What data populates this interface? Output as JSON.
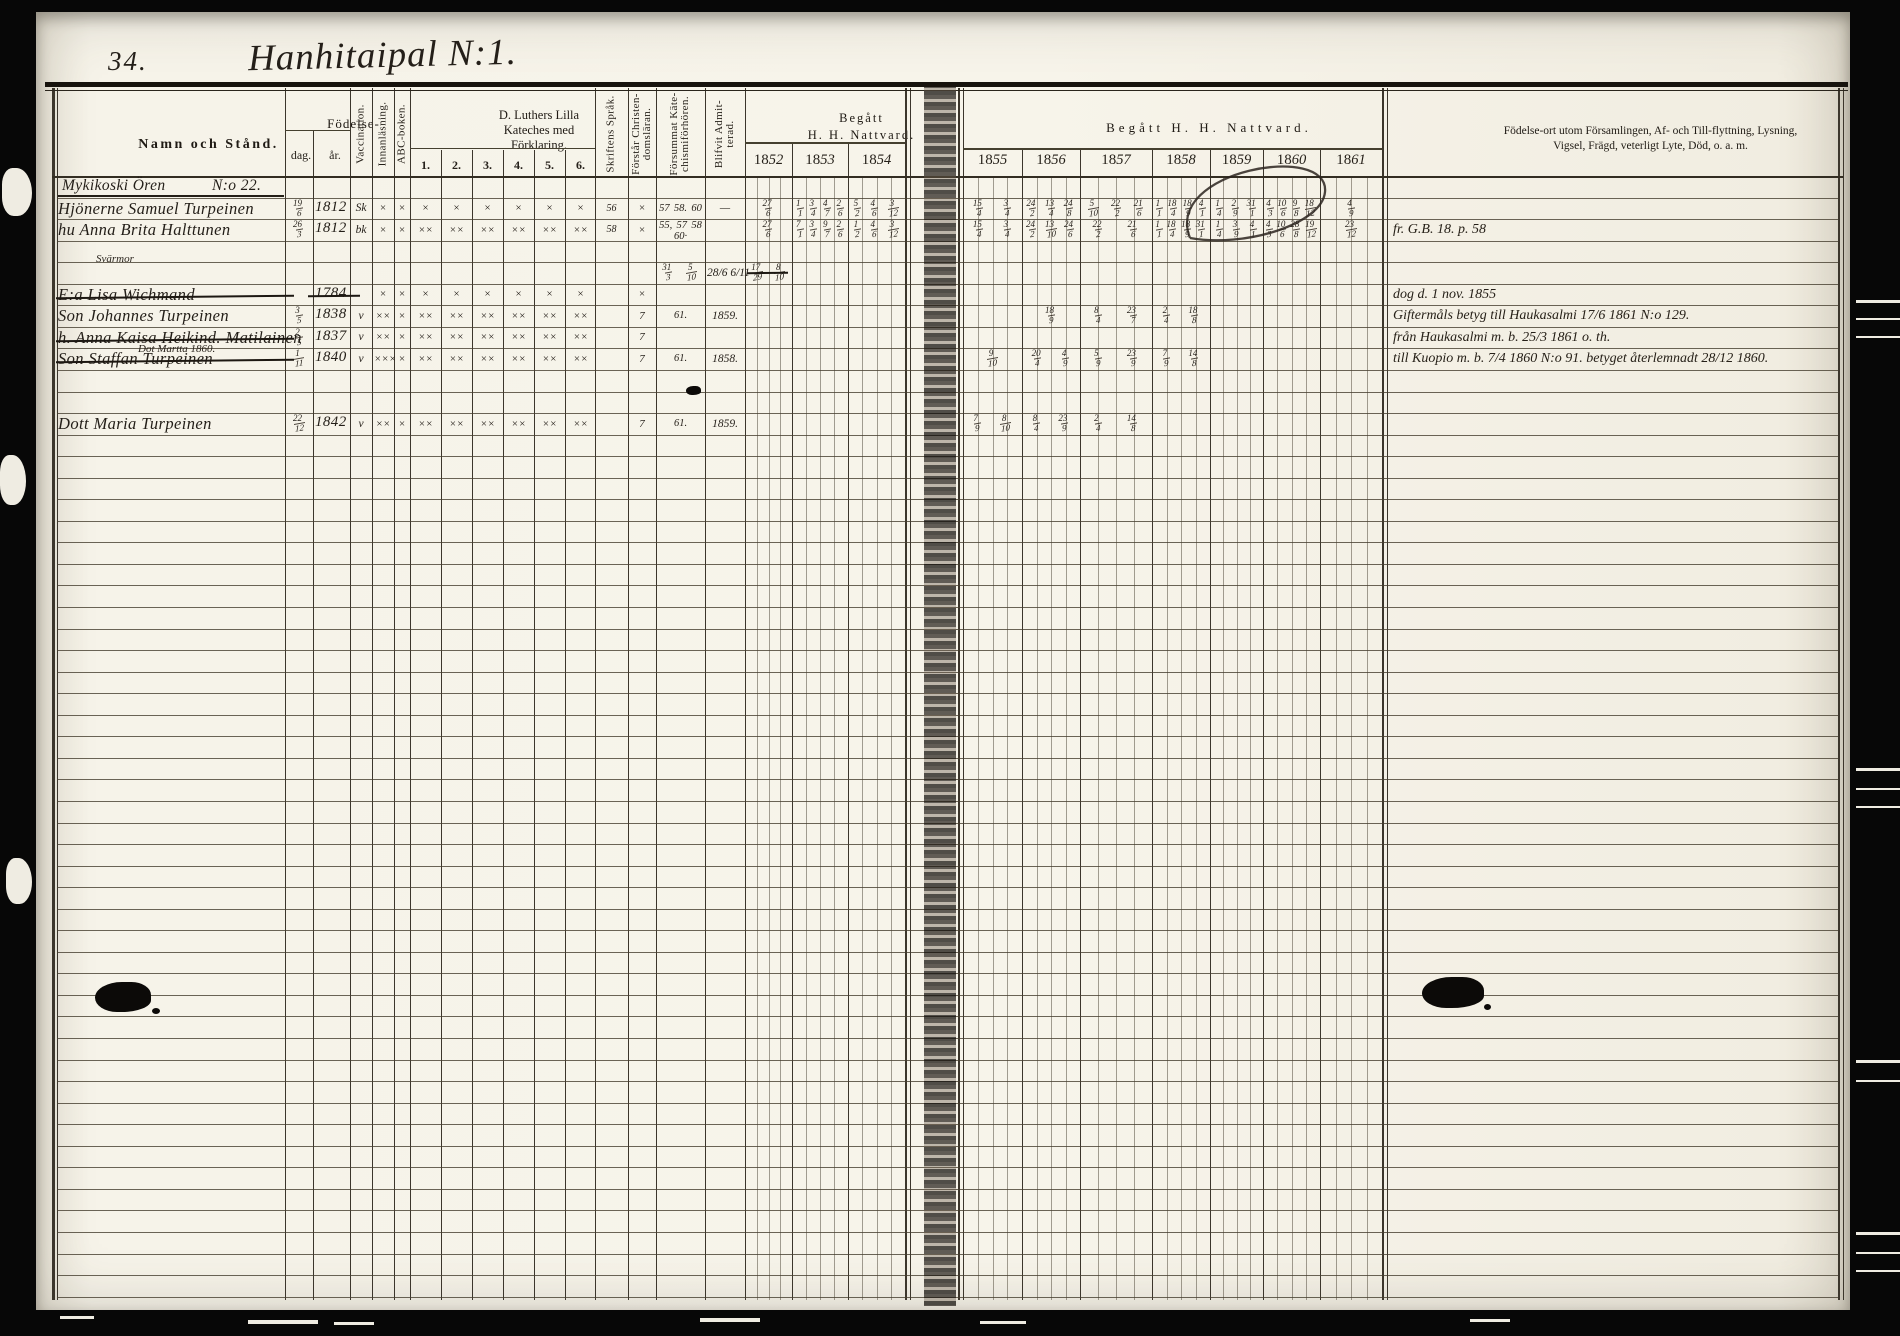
{
  "scan": {
    "folio": "34.",
    "title": "Hanhitaipal N:1."
  },
  "columns": {
    "namn": "Namn och Stånd.",
    "fodelse": "Födelse-",
    "dag": "dag.",
    "ar": "år.",
    "vaccination": "Vaccination.",
    "innanlasning": "Innanläsning.",
    "abc": "ABC-boken.",
    "kateches": [
      "D. Luthers Lilla",
      "Kateches med",
      "Förklaring."
    ],
    "kateches_sub": [
      "1.",
      "2.",
      "3.",
      "4.",
      "5.",
      "6."
    ],
    "sprak": "Skriftens Språk.",
    "forstar": [
      "Förstår Christen-",
      "domsläran."
    ],
    "forsummat": [
      "Försummat Käte-",
      "chismiförhören."
    ],
    "admitterad": [
      "Blifvit Admit-",
      "terad."
    ],
    "begatt_left": [
      "Begått",
      "H. H. Nattvard."
    ],
    "begatt_right": "Begått  H.  H.  Nattvard.",
    "notes": [
      "Födelse-ort utom Församlingen, Af- och Till-flyttning, Lysning,",
      "Vigsel, Frägd, veterligt Lyte, Död, o. a. m."
    ]
  },
  "years_left": [
    "1852",
    "1853",
    "1854"
  ],
  "years_right": [
    "1855",
    "1856",
    "1857",
    "1858",
    "1859",
    "1860",
    "1861"
  ],
  "rows": [
    {
      "r": 0,
      "kind": "farm",
      "name": "Mykikoski Ören",
      "suffix": "N:o 22."
    },
    {
      "r": 1,
      "name": "Hjönerne Samuel Turpeinen",
      "dag": "19/6",
      "ar": "1812",
      "vacc": "Sk",
      "innan": "×",
      "abc": "×",
      "kat": [
        "×",
        "×",
        "×",
        "×",
        "×",
        "×"
      ],
      "sprak": "56",
      "forstar": "×",
      "forsummat": "57 58. 60",
      "admit": "—",
      "c": {
        "1852": "27/6",
        "1853": "1/1 3/4 4/7 2/6",
        "1854": "5/2 4/6 3/12",
        "1855": "15/4 3/4",
        "1856": "24/2 13/4 24/8",
        "1857": "5/10 22/2 21/6",
        "1858": "1/1 18/4 18/9 4/1",
        "1859": "1/4 2/9 31/1",
        "1860": "4/3 10/6 9/8 18/12",
        "1861": "4/9"
      }
    },
    {
      "r": 2,
      "name": "hu Anna Brita Halttunen",
      "dag": "26/3",
      "ar": "1812",
      "vacc": "bk",
      "innan": "×",
      "abc": "×",
      "kat": [
        "××",
        "××",
        "××",
        "××",
        "××",
        "××"
      ],
      "sprak": "58",
      "forstar": "×",
      "forsummat": "55, 57 58 60·",
      "admit": "",
      "c": {
        "1852": "27/6",
        "1853": "7/1 3/4 9/7 2/6",
        "1854": "1/2 4/6 3/12",
        "1855": "15/4 3/4",
        "1856": "24/2 13/10 24/6",
        "1857": "22/2 21/6",
        "1858": "1/1 18/4 18/9 31/1",
        "1859": "1/4 3/9 4/1",
        "1860": "4/3 10/6 28/8 19/12",
        "1861": "23/12"
      },
      "notes": "fr. G.B. 18. p. 58"
    },
    {
      "r": 4,
      "kind": "annot",
      "small": "Svärmor",
      "forsummat": "31/3 5/10",
      "admit": "28/6 6/11",
      "c": {
        "1852": "17/29 8/10"
      },
      "cell_struck": true
    },
    {
      "r": 5,
      "name": "E:a Lisa Wichmand",
      "struck": true,
      "ar": "1784",
      "year_struck": true,
      "innan": "×",
      "abc": "×",
      "kat": [
        "×",
        "×",
        "×",
        "×",
        "×",
        "×"
      ],
      "forstar": "×",
      "notes": "dog d. 1 nov. 1855"
    },
    {
      "r": 6,
      "name": "Son Johannes Turpeinen",
      "dag": "3/5",
      "ar": "1838",
      "vacc": "v",
      "innan": "××",
      "abc": "×",
      "kat": [
        "××",
        "××",
        "××",
        "××",
        "××",
        "××"
      ],
      "forstar": "7",
      "forsummat": "61.",
      "admit": "1859.",
      "c": {
        "1856": "18/9",
        "1857": "8/4 23/7",
        "1858": "2/4 18/8"
      },
      "notes": "Giftermåls betyg till Haukasalmi 17/6 1861 N:o 129."
    },
    {
      "r": 7,
      "name": "h. Anna Kaisa Heikind. Matilainen",
      "struck": true,
      "sub": "Dot Martta 1860.",
      "dag": "2/5",
      "ar": "1837",
      "vacc": "v",
      "innan": "××",
      "abc": "×",
      "kat": [
        "××",
        "××",
        "××",
        "××",
        "××",
        "××"
      ],
      "forstar": "7",
      "notes": "från Haukasalmi m. b. 25/3 1861 o. th."
    },
    {
      "r": 8,
      "name": "Son Staffan Turpeinen",
      "struck": true,
      "dag": "1/11",
      "ar": "1840",
      "vacc": "v",
      "innan": "×××",
      "abc": "×",
      "kat": [
        "××",
        "××",
        "××",
        "××",
        "××",
        "××"
      ],
      "forstar": "7",
      "forsummat": "61.",
      "admit": "1858.",
      "c": {
        "1855": "9/10",
        "1856": "20/4 4/9",
        "1857": "5/9 23/9",
        "1858": "7/9 14/8"
      },
      "notes": "till Kuopio m. b. 7/4 1860 N:o 91. betyget återlemnadt 28/12 1860."
    },
    {
      "r": 11,
      "name": "Dott Maria Turpeinen",
      "dag": "22/12",
      "ar": "1842",
      "vacc": "v",
      "innan": "××",
      "abc": "×",
      "kat": [
        "××",
        "××",
        "××",
        "××",
        "××",
        "××"
      ],
      "forstar": "7",
      "forsummat": "61.",
      "admit": "1859.",
      "c": {
        "1855": "7/9 8/10",
        "1856": "8/4 23/9",
        "1857": "2/4 14/8"
      }
    }
  ]
}
